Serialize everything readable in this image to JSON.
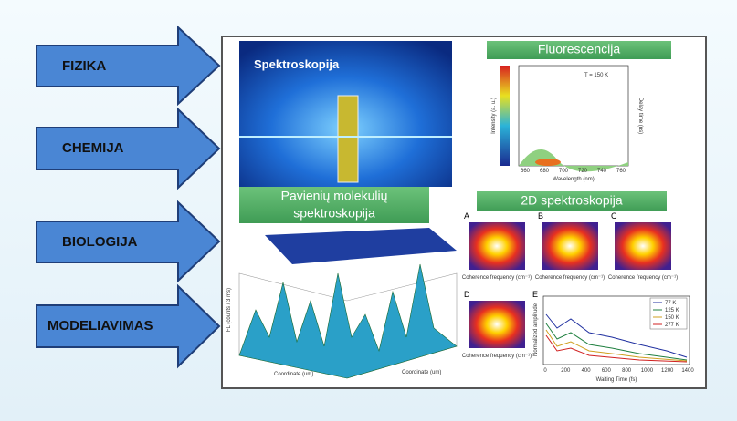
{
  "arrows": [
    "FIZIKA",
    "CHEMIJA",
    "BIOLOGIJA",
    "MODELIAVIMAS"
  ],
  "panels": {
    "photo": "Spektroskopija",
    "fluorescence": "Fluorescencija",
    "single": [
      "Pavienių molekulių",
      "spektroskopija"
    ],
    "twod": "2D spektroskopija"
  },
  "fluor_plot": {
    "xlabel": "Wavelength (nm)",
    "ylabel": "Intensity (a. u.)",
    "y2label": "Delay time (ns)",
    "note": "T = 150 K",
    "xticks": [
      "660",
      "680",
      "700",
      "720",
      "740",
      "760"
    ]
  },
  "surface_plot": {
    "zlabel": "FL (counts / 3 ms)",
    "xlabel": "Coordinate (um)",
    "ylabel": "Coordinate (um)"
  },
  "twod_panels": [
    "A",
    "B",
    "C",
    "D",
    "E"
  ],
  "twod_axis": "Coherence frequency (cm⁻¹)",
  "decay_plot": {
    "xlabel": "Waiting Time (fs)",
    "ylabel": "Normalized amplitude",
    "xticks": [
      "0",
      "200",
      "400",
      "600",
      "800",
      "1000",
      "1200",
      "1400"
    ],
    "legend": [
      "77 K",
      "125 K",
      "150 K",
      "277 K"
    ]
  }
}
